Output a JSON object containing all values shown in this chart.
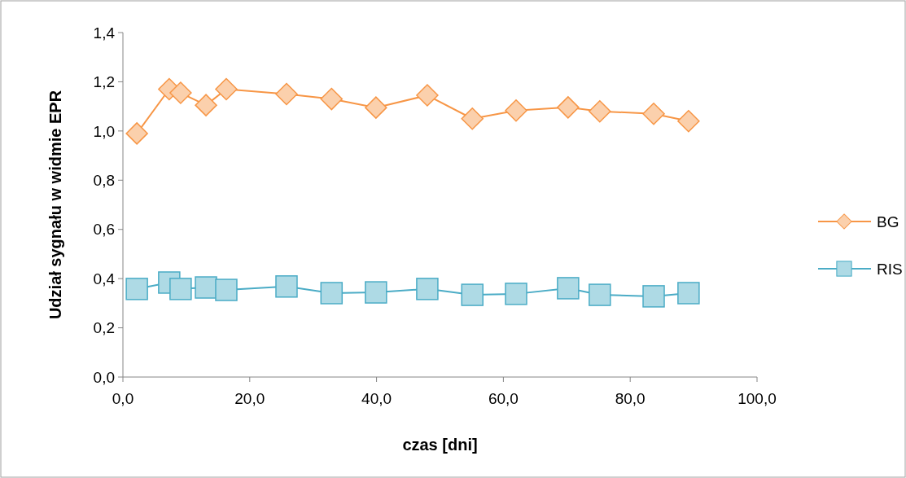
{
  "chart_data": {
    "type": "line",
    "xlabel": "czas [dni]",
    "ylabel": "Udział sygnału w widmie EPR",
    "xlim": [
      0,
      100
    ],
    "xticks": [
      {
        "value": 0,
        "label": "0,0"
      },
      {
        "value": 20,
        "label": "20,0"
      },
      {
        "value": 40,
        "label": "40,0"
      },
      {
        "value": 60,
        "label": "60,0"
      },
      {
        "value": 80,
        "label": "80,0"
      },
      {
        "value": 100,
        "label": "100,0"
      }
    ],
    "ylim": [
      0,
      1.4
    ],
    "yticks": [
      {
        "value": 0,
        "label": "0,0"
      },
      {
        "value": 0.2,
        "label": "0,2"
      },
      {
        "value": 0.4,
        "label": "0,4"
      },
      {
        "value": 0.6,
        "label": "0,6"
      },
      {
        "value": 0.8,
        "label": "0,8"
      },
      {
        "value": 1,
        "label": "1,0"
      },
      {
        "value": 1.2,
        "label": "1,2"
      },
      {
        "value": 1.4,
        "label": "1,4"
      }
    ],
    "x": [
      2.2,
      7.3,
      9.1,
      13.1,
      16.3,
      25.8,
      32.9,
      39.9,
      48.0,
      55.1,
      62.0,
      70.2,
      75.2,
      83.7,
      89.2
    ],
    "series": [
      {
        "name": "BG",
        "color": "#f79646",
        "marker": "diamond",
        "values": [
          0.99,
          1.17,
          1.155,
          1.105,
          1.17,
          1.15,
          1.13,
          1.095,
          1.145,
          1.05,
          1.083,
          1.096,
          1.08,
          1.07,
          1.04
        ]
      },
      {
        "name": "RIS",
        "color": "#4bacc6",
        "marker": "square",
        "values": [
          0.358,
          0.384,
          0.358,
          0.364,
          0.354,
          0.368,
          0.341,
          0.344,
          0.358,
          0.334,
          0.338,
          0.361,
          0.334,
          0.328,
          0.341
        ]
      }
    ],
    "grid": false,
    "legend": "right"
  }
}
